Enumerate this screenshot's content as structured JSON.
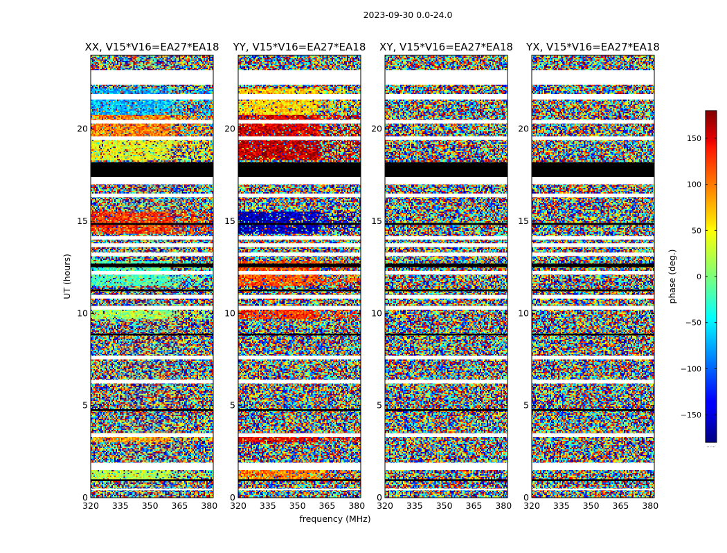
{
  "figure": {
    "suptitle": "2023-09-30 0.0-24.0",
    "ylabel": "UT (hours)",
    "xlabel": "frequency (MHz)"
  },
  "chart_data": {
    "type": "heatmap",
    "x_range": [
      320,
      382
    ],
    "x_ticks": [
      320,
      335,
      350,
      365,
      380
    ],
    "y_range": [
      0,
      24
    ],
    "y_ticks": [
      0,
      5,
      10,
      15,
      20
    ],
    "panels": [
      {
        "title": "XX, V15*V16=EA27*EA18",
        "structure": "coherent",
        "bands": [
          {
            "y0": 14.3,
            "y1": 15.5,
            "phase": 120
          },
          {
            "y0": 18.3,
            "y1": 19.5,
            "phase": 40
          },
          {
            "y0": 19.5,
            "y1": 20.8,
            "phase": 90
          },
          {
            "y0": 20.8,
            "y1": 22.2,
            "phase": -70
          },
          {
            "y0": 11.5,
            "y1": 12.8,
            "phase": -20
          },
          {
            "y0": 9.7,
            "y1": 10.3,
            "phase": 10
          },
          {
            "y0": 3.0,
            "y1": 3.5,
            "phase": 80
          },
          {
            "y0": 1.0,
            "y1": 1.8,
            "phase": 20
          }
        ],
        "blank_rows": [
          [
            22.4,
            23.2
          ],
          [
            21.6,
            21.9
          ],
          [
            20.3,
            20.5
          ],
          [
            19.4,
            19.6
          ],
          [
            17.0,
            17.4
          ],
          [
            16.3,
            16.5
          ],
          [
            14.0,
            14.2
          ],
          [
            13.6,
            13.8
          ],
          [
            13.1,
            13.3
          ],
          [
            12.1,
            12.3
          ],
          [
            10.8,
            11.0
          ],
          [
            10.2,
            10.4
          ],
          [
            7.5,
            7.7
          ],
          [
            6.2,
            6.4
          ],
          [
            3.3,
            3.5
          ],
          [
            1.5,
            1.9
          ],
          [
            0.4,
            0.5
          ]
        ],
        "black_rows": [
          [
            17.4,
            18.2
          ],
          [
            14.8,
            14.9
          ],
          [
            12.5,
            12.7
          ],
          [
            11.2,
            11.3
          ],
          [
            8.8,
            8.9
          ],
          [
            4.7,
            4.8
          ],
          [
            0.9,
            1.0
          ]
        ]
      },
      {
        "title": "YY, V15*V16=EA27*EA18",
        "structure": "coherent",
        "bands": [
          {
            "y0": 14.3,
            "y1": 15.5,
            "phase": -160
          },
          {
            "y0": 18.3,
            "y1": 19.5,
            "phase": 160
          },
          {
            "y0": 19.5,
            "y1": 20.8,
            "phase": 150
          },
          {
            "y0": 20.8,
            "y1": 22.2,
            "phase": 60
          },
          {
            "y0": 11.5,
            "y1": 12.8,
            "phase": 110
          },
          {
            "y0": 9.7,
            "y1": 10.3,
            "phase": 120
          },
          {
            "y0": 3.0,
            "y1": 3.5,
            "phase": 140
          },
          {
            "y0": 1.0,
            "y1": 1.8,
            "phase": 90
          }
        ],
        "blank_rows": [
          [
            22.4,
            23.2
          ],
          [
            21.6,
            21.9
          ],
          [
            20.3,
            20.5
          ],
          [
            19.4,
            19.6
          ],
          [
            17.0,
            17.4
          ],
          [
            16.3,
            16.5
          ],
          [
            14.0,
            14.2
          ],
          [
            13.6,
            13.8
          ],
          [
            13.1,
            13.3
          ],
          [
            12.1,
            12.3
          ],
          [
            10.8,
            11.0
          ],
          [
            10.2,
            10.4
          ],
          [
            7.5,
            7.7
          ],
          [
            6.2,
            6.4
          ],
          [
            3.3,
            3.5
          ],
          [
            1.5,
            1.9
          ],
          [
            0.4,
            0.5
          ]
        ],
        "black_rows": [
          [
            17.4,
            18.2
          ],
          [
            14.8,
            14.9
          ],
          [
            12.5,
            12.7
          ],
          [
            11.2,
            11.3
          ],
          [
            8.8,
            8.9
          ],
          [
            4.7,
            4.8
          ],
          [
            0.9,
            1.0
          ]
        ]
      },
      {
        "title": "XY, V15*V16=EA27*EA18",
        "structure": "noise",
        "bands": [],
        "blank_rows": [
          [
            22.4,
            23.2
          ],
          [
            21.6,
            21.9
          ],
          [
            20.3,
            20.5
          ],
          [
            19.4,
            19.6
          ],
          [
            17.0,
            17.4
          ],
          [
            16.3,
            16.5
          ],
          [
            14.0,
            14.2
          ],
          [
            13.6,
            13.8
          ],
          [
            13.1,
            13.3
          ],
          [
            12.1,
            12.3
          ],
          [
            10.8,
            11.0
          ],
          [
            10.2,
            10.4
          ],
          [
            7.5,
            7.7
          ],
          [
            6.2,
            6.4
          ],
          [
            3.3,
            3.5
          ],
          [
            1.5,
            1.9
          ],
          [
            0.4,
            0.5
          ]
        ],
        "black_rows": [
          [
            17.4,
            18.2
          ],
          [
            14.8,
            14.9
          ],
          [
            12.5,
            12.7
          ],
          [
            11.2,
            11.3
          ],
          [
            8.8,
            8.9
          ],
          [
            4.7,
            4.8
          ],
          [
            0.9,
            1.0
          ]
        ]
      },
      {
        "title": "YX, V15*V16=EA27*EA18",
        "structure": "noise",
        "bands": [],
        "blank_rows": [
          [
            22.4,
            23.2
          ],
          [
            21.6,
            21.9
          ],
          [
            20.3,
            20.5
          ],
          [
            19.4,
            19.6
          ],
          [
            17.0,
            17.4
          ],
          [
            16.3,
            16.5
          ],
          [
            14.0,
            14.2
          ],
          [
            13.6,
            13.8
          ],
          [
            13.1,
            13.3
          ],
          [
            12.1,
            12.3
          ],
          [
            10.8,
            11.0
          ],
          [
            10.2,
            10.4
          ],
          [
            7.5,
            7.7
          ],
          [
            6.2,
            6.4
          ],
          [
            3.3,
            3.5
          ],
          [
            1.5,
            1.9
          ],
          [
            0.4,
            0.5
          ]
        ],
        "black_rows": [
          [
            17.4,
            18.2
          ],
          [
            14.8,
            14.9
          ],
          [
            12.5,
            12.7
          ],
          [
            11.2,
            11.3
          ],
          [
            8.8,
            8.9
          ],
          [
            4.7,
            4.8
          ],
          [
            0.9,
            1.0
          ]
        ]
      }
    ],
    "colorbar": {
      "label": "phase (deg.)",
      "range": [
        -180,
        180
      ],
      "ticks": [
        150,
        100,
        50,
        0,
        -50,
        -100,
        -150
      ],
      "tick_labels": [
        "150",
        "100",
        "50",
        "0",
        "−50",
        "−100",
        "−150"
      ],
      "colormap": "jet",
      "footer": "......"
    }
  }
}
